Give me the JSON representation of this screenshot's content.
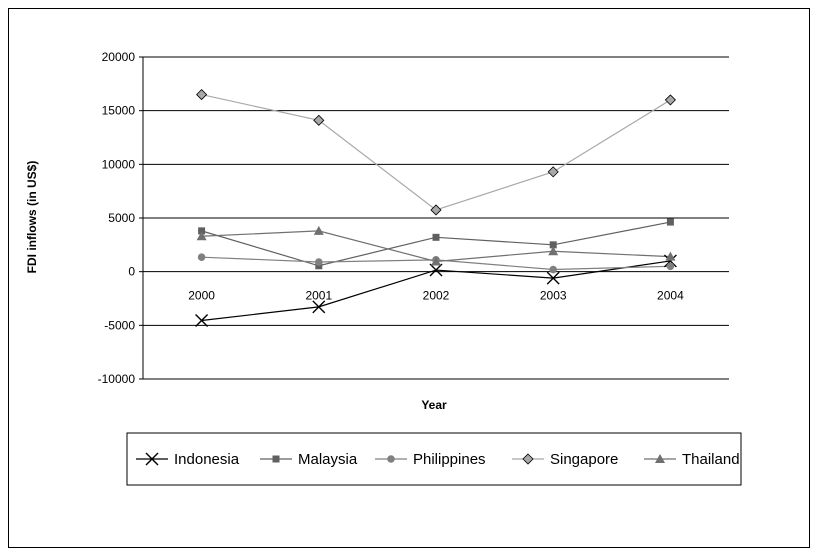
{
  "chart_data": {
    "type": "line",
    "title": "",
    "xlabel": "Year",
    "ylabel": "FDI inflows (in US$)",
    "categories": [
      "2000",
      "2001",
      "2002",
      "2003",
      "2004"
    ],
    "ylim": [
      -10000,
      20000
    ],
    "yticks": [
      20000,
      15000,
      10000,
      5000,
      0,
      -5000,
      -10000
    ],
    "grid": true,
    "legend_position": "bottom",
    "series": [
      {
        "name": "Indonesia",
        "marker": "x",
        "color": "#000000",
        "values": [
          -4550,
          -3280,
          150,
          -600,
          1000
        ]
      },
      {
        "name": "Malaysia",
        "marker": "square",
        "color": "#606060",
        "values": [
          3800,
          550,
          3200,
          2500,
          4620
        ]
      },
      {
        "name": "Philippines",
        "marker": "circle",
        "color": "#808080",
        "values": [
          1350,
          900,
          1100,
          200,
          500
        ]
      },
      {
        "name": "Singapore",
        "marker": "diamond",
        "color": "#a8a8a8",
        "values": [
          16500,
          14100,
          5750,
          9300,
          16000
        ]
      },
      {
        "name": "Thailand",
        "marker": "triangle",
        "color": "#707070",
        "values": [
          3300,
          3800,
          950,
          1900,
          1400
        ]
      }
    ]
  }
}
